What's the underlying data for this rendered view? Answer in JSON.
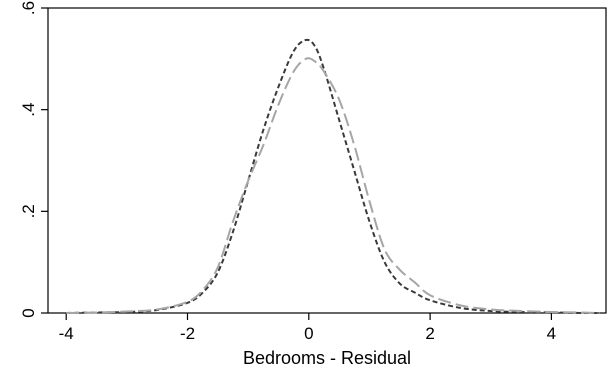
{
  "chart_data": {
    "type": "line",
    "title": "",
    "xlabel": "Bedrooms - Residual",
    "ylabel": "",
    "xlim": [
      -4.3,
      4.9
    ],
    "ylim": [
      0,
      0.6
    ],
    "x_ticks": [
      {
        "value": -4,
        "label": "-4"
      },
      {
        "value": -2,
        "label": "-2"
      },
      {
        "value": 0,
        "label": "0"
      },
      {
        "value": 2,
        "label": "2"
      },
      {
        "value": 4,
        "label": "4"
      }
    ],
    "y_ticks": [
      {
        "value": 0,
        "label": "0"
      },
      {
        "value": 0.2,
        "label": ".2"
      },
      {
        "value": 0.4,
        "label": ".4"
      },
      {
        "value": 0.6,
        "label": ".6"
      }
    ],
    "grid": false,
    "legend": "none",
    "series": [
      {
        "style": "short-dash",
        "color": "#3a3a3a",
        "points": [
          [
            -4.0,
            0.0
          ],
          [
            -3.5,
            0.001
          ],
          [
            -3.0,
            0.002
          ],
          [
            -2.5,
            0.006
          ],
          [
            -2.0,
            0.02
          ],
          [
            -1.75,
            0.04
          ],
          [
            -1.5,
            0.08
          ],
          [
            -1.25,
            0.16
          ],
          [
            -1.0,
            0.26
          ],
          [
            -0.75,
            0.36
          ],
          [
            -0.5,
            0.445
          ],
          [
            -0.25,
            0.515
          ],
          [
            -0.05,
            0.537
          ],
          [
            0.1,
            0.525
          ],
          [
            0.25,
            0.48
          ],
          [
            0.5,
            0.38
          ],
          [
            0.75,
            0.28
          ],
          [
            1.0,
            0.18
          ],
          [
            1.25,
            0.1
          ],
          [
            1.5,
            0.058
          ],
          [
            1.75,
            0.04
          ],
          [
            2.0,
            0.025
          ],
          [
            2.5,
            0.01
          ],
          [
            3.0,
            0.004
          ],
          [
            3.5,
            0.002
          ],
          [
            4.0,
            0.001
          ],
          [
            4.5,
            0.0
          ],
          [
            4.8,
            0.0
          ]
        ]
      },
      {
        "style": "long-dash",
        "color": "#a6a6a6",
        "points": [
          [
            -4.0,
            0.0
          ],
          [
            -3.5,
            0.001
          ],
          [
            -3.0,
            0.003
          ],
          [
            -2.5,
            0.007
          ],
          [
            -2.0,
            0.022
          ],
          [
            -1.75,
            0.045
          ],
          [
            -1.5,
            0.09
          ],
          [
            -1.25,
            0.18
          ],
          [
            -1.0,
            0.26
          ],
          [
            -0.75,
            0.33
          ],
          [
            -0.5,
            0.41
          ],
          [
            -0.25,
            0.475
          ],
          [
            -0.05,
            0.5
          ],
          [
            0.1,
            0.495
          ],
          [
            0.25,
            0.475
          ],
          [
            0.5,
            0.42
          ],
          [
            0.75,
            0.33
          ],
          [
            1.0,
            0.22
          ],
          [
            1.25,
            0.125
          ],
          [
            1.5,
            0.085
          ],
          [
            1.75,
            0.06
          ],
          [
            2.0,
            0.035
          ],
          [
            2.5,
            0.015
          ],
          [
            3.0,
            0.007
          ],
          [
            3.5,
            0.004
          ],
          [
            4.0,
            0.002
          ],
          [
            4.5,
            0.001
          ],
          [
            4.8,
            0.0
          ]
        ]
      }
    ]
  }
}
